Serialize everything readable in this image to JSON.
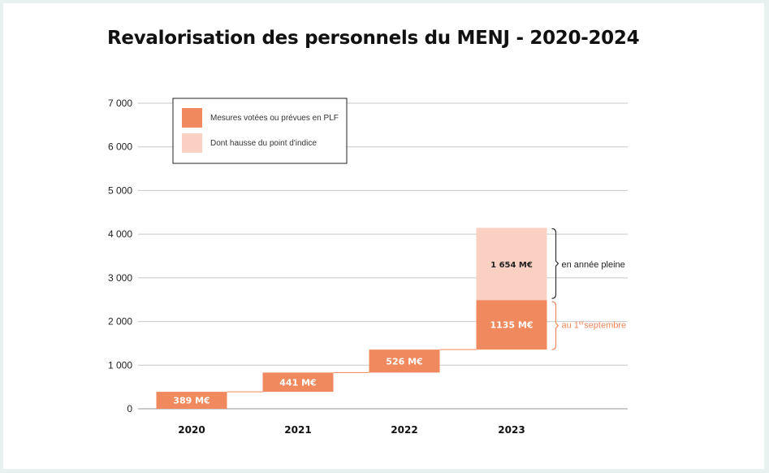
{
  "chart_data": {
    "type": "bar",
    "title": "Revalorisation des personnels du MENJ - 2020-2024",
    "categories": [
      "2020",
      "2021",
      "2022",
      "2023"
    ],
    "ylim": [
      0,
      7000
    ],
    "yticks": [
      {
        "value": 0,
        "label": "0"
      },
      {
        "value": 1000,
        "label": "1 000"
      },
      {
        "value": 2000,
        "label": "2 000"
      },
      {
        "value": 3000,
        "label": "3 000"
      },
      {
        "value": 4000,
        "label": "4 000"
      },
      {
        "value": 5000,
        "label": "5 000"
      },
      {
        "value": 6000,
        "label": "6 000"
      },
      {
        "value": 7000,
        "label": "7 000"
      }
    ],
    "grid": true,
    "legend_position": "top-left",
    "series": [
      {
        "name": "Mesures votées ou prévues en PLF",
        "color": "#f0895d",
        "values": [
          389,
          441,
          526,
          1135
        ],
        "bases": [
          0,
          389,
          830,
          1356
        ],
        "labels": [
          "389 M€",
          "441 M€",
          "526 M€",
          "1135 M€"
        ]
      },
      {
        "name": "Dont hausse du point d'indice",
        "color": "#f9d0c1",
        "values": [
          0,
          0,
          0,
          1654
        ],
        "bases": [
          0,
          0,
          0,
          2491
        ],
        "labels": [
          "",
          "",
          "",
          "1 654 M€"
        ]
      }
    ],
    "annotations": {
      "full_year": "en année pleine",
      "september_prefix": "au 1",
      "september_sup": "er",
      "september_suffix": "septembre"
    },
    "annotation_colors": {
      "full_year": "#222222",
      "september": "#f0895d"
    }
  }
}
